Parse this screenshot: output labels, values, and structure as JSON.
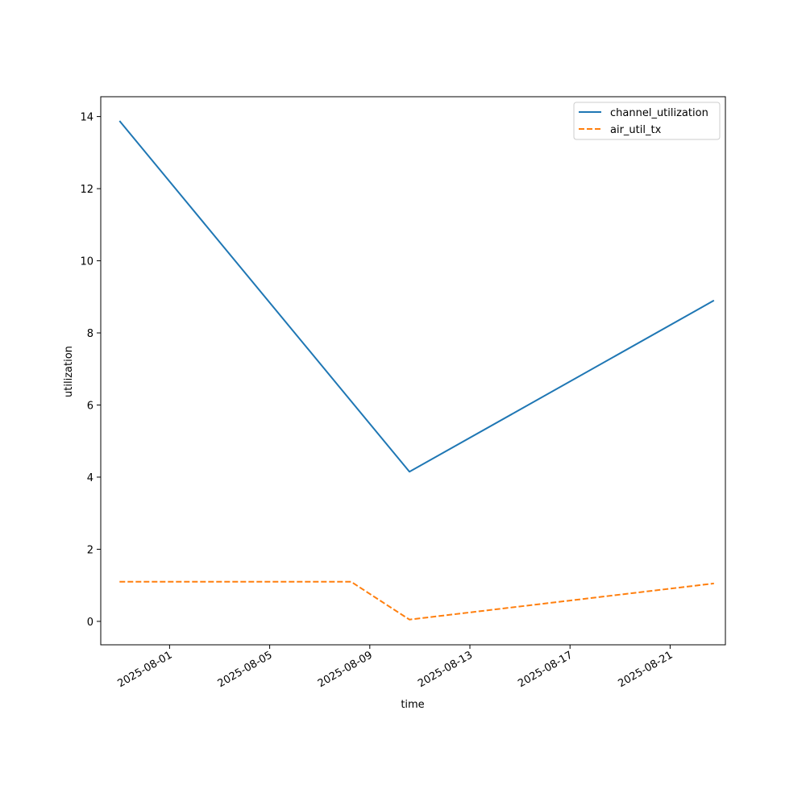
{
  "chart_data": {
    "type": "line",
    "title": "",
    "xlabel": "time",
    "ylabel": "utilization",
    "x_ticks": [
      "2025-08-01",
      "2025-08-05",
      "2025-08-09",
      "2025-08-13",
      "2025-08-17",
      "2025-08-21"
    ],
    "y_ticks": [
      "0",
      "2",
      "4",
      "6",
      "8",
      "10",
      "12",
      "14"
    ],
    "xlim": [
      "2025-07-29T06:00",
      "2025-08-23T05:00"
    ],
    "ylim": [
      -0.65,
      14.55
    ],
    "grid": false,
    "legend_position": "top-right",
    "series": [
      {
        "name": "channel_utilization",
        "color": "#1f77b4",
        "style": "solid",
        "points": [
          {
            "x": "2025-07-30T00:00",
            "y": 13.88
          },
          {
            "x": "2025-08-10T14:00",
            "y": 4.15
          },
          {
            "x": "2025-08-22T18:00",
            "y": 8.9
          }
        ]
      },
      {
        "name": "air_util_tx",
        "color": "#ff7f0e",
        "style": "dashed",
        "points": [
          {
            "x": "2025-07-30T00:00",
            "y": 1.1
          },
          {
            "x": "2025-08-08T06:00",
            "y": 1.1
          },
          {
            "x": "2025-08-10T14:00",
            "y": 0.05
          },
          {
            "x": "2025-08-22T18:00",
            "y": 1.05
          }
        ]
      }
    ]
  }
}
